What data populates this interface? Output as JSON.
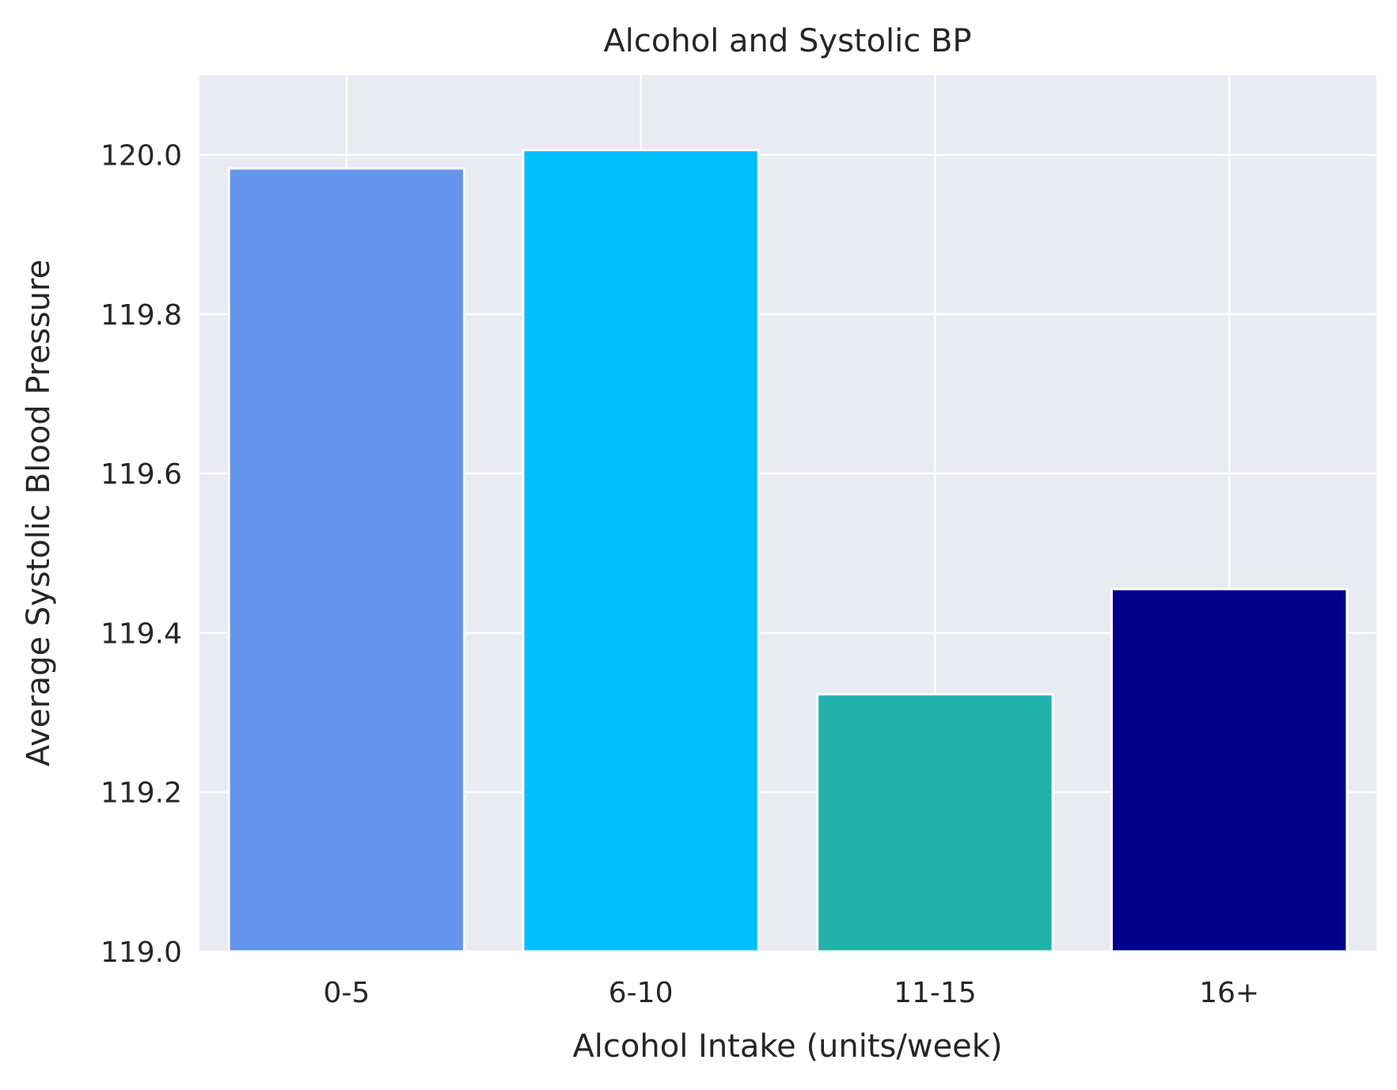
{
  "chart_data": {
    "type": "bar",
    "title": "Alcohol and Systolic BP",
    "xlabel": "Alcohol Intake (units/week)",
    "ylabel": "Average Systolic Blood Pressure",
    "categories": [
      "0-5",
      "6-10",
      "11-15",
      "16+"
    ],
    "values": [
      119.983,
      120.006,
      119.323,
      119.455
    ],
    "bar_colors": [
      "#6495ED",
      "#00BFFF",
      "#20B2AA",
      "#00008B"
    ],
    "ylim": [
      119.0,
      120.1
    ],
    "yticks": [
      "119.0",
      "119.2",
      "119.4",
      "119.6",
      "119.8",
      "120.0"
    ],
    "grid": true,
    "background_color": "#EAEAF2",
    "grid_color": "#FFFFFF"
  }
}
